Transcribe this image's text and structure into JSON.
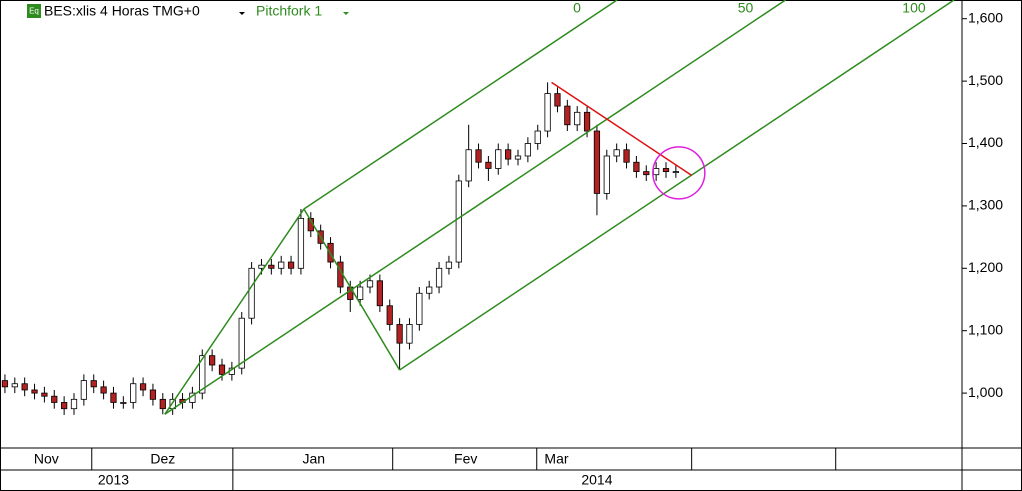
{
  "chart_data": {
    "type": "candlestick",
    "icon": "Eq",
    "title": "BES:xlis 4 Horas TMG+0",
    "study": "Pitchfork 1",
    "up_color": "#ffffff",
    "down_color": "#b22222",
    "xlim": [
      0,
      97.5
    ],
    "ylim": [
      912,
      1630
    ],
    "yticks": [
      {
        "value": 1000,
        "label": "1,000"
      },
      {
        "value": 1100,
        "label": "1,100"
      },
      {
        "value": 1200,
        "label": "1,200"
      },
      {
        "value": 1300,
        "label": "1,300"
      },
      {
        "value": 1400,
        "label": "1,400"
      },
      {
        "value": 1500,
        "label": "1,500"
      },
      {
        "value": 1600,
        "label": "1,600"
      }
    ],
    "months": [
      {
        "value": 4.7,
        "label": "Nov"
      },
      {
        "value": 16.5,
        "label": "Dez"
      },
      {
        "value": 31.8,
        "label": "Jan"
      },
      {
        "value": 47.2,
        "label": "Fev"
      },
      {
        "value": 56.4,
        "label": "Mar"
      }
    ],
    "month_dividers": [
      9.3,
      23.6,
      39.8,
      54.4,
      70.1,
      84.7
    ],
    "years": [
      {
        "value": 11.5,
        "label": "2013"
      },
      {
        "value": 60.5,
        "label": "2014"
      }
    ],
    "year_dividers": [
      23.6
    ],
    "open": [
      1020,
      1010,
      1015,
      1005,
      1000,
      995,
      985,
      975,
      990,
      1020,
      1010,
      1000,
      985,
      985,
      1015,
      1005,
      990,
      975,
      990,
      985,
      1000,
      1060,
      1045,
      1030,
      1040,
      1120,
      1200,
      1205,
      1200,
      1210,
      1200,
      1280,
      1260,
      1240,
      1210,
      1170,
      1150,
      1170,
      1180,
      1140,
      1110,
      1080,
      1110,
      1160,
      1170,
      1200,
      1210,
      1340,
      1390,
      1370,
      1360,
      1390,
      1375,
      1380,
      1400,
      1420,
      1480,
      1460,
      1430,
      1450,
      1420,
      1320,
      1380,
      1390,
      1370,
      1355,
      1350,
      1360,
      1355
    ],
    "high": [
      1030,
      1025,
      1025,
      1015,
      1010,
      1005,
      995,
      1000,
      1030,
      1030,
      1020,
      1010,
      995,
      1025,
      1025,
      1015,
      1000,
      1000,
      1000,
      1010,
      1070,
      1070,
      1055,
      1050,
      1130,
      1210,
      1215,
      1215,
      1220,
      1220,
      1295,
      1290,
      1270,
      1250,
      1220,
      1180,
      1180,
      1190,
      1190,
      1150,
      1120,
      1120,
      1170,
      1180,
      1210,
      1220,
      1350,
      1430,
      1400,
      1380,
      1400,
      1400,
      1390,
      1410,
      1430,
      1498,
      1490,
      1470,
      1460,
      1460,
      1430,
      1390,
      1400,
      1400,
      1380,
      1365,
      1370,
      1370,
      1365
    ],
    "low": [
      1000,
      1000,
      995,
      990,
      985,
      975,
      965,
      965,
      980,
      1000,
      990,
      975,
      975,
      975,
      995,
      980,
      966,
      965,
      975,
      975,
      990,
      1035,
      1020,
      1020,
      1030,
      1110,
      1190,
      1190,
      1190,
      1190,
      1190,
      1250,
      1230,
      1200,
      1160,
      1130,
      1140,
      1160,
      1130,
      1100,
      1037,
      1070,
      1100,
      1150,
      1160,
      1190,
      1200,
      1330,
      1360,
      1340,
      1350,
      1365,
      1365,
      1370,
      1390,
      1410,
      1450,
      1420,
      1420,
      1410,
      1285,
      1310,
      1370,
      1360,
      1345,
      1340,
      1340,
      1345,
      1345
    ],
    "close": [
      1010,
      1015,
      1005,
      1000,
      995,
      985,
      975,
      990,
      1020,
      1010,
      1000,
      985,
      985,
      1015,
      1005,
      990,
      975,
      990,
      985,
      1000,
      1060,
      1045,
      1030,
      1040,
      1120,
      1200,
      1205,
      1200,
      1210,
      1200,
      1280,
      1260,
      1240,
      1210,
      1170,
      1150,
      1170,
      1180,
      1140,
      1110,
      1080,
      1110,
      1160,
      1170,
      1200,
      1210,
      1340,
      1390,
      1370,
      1360,
      1390,
      1375,
      1380,
      1400,
      1420,
      1480,
      1460,
      1430,
      1450,
      1420,
      1320,
      1380,
      1390,
      1370,
      1355,
      1350,
      1360,
      1355,
      1355
    ],
    "pitchfork": {
      "color": "#2e8b1e",
      "points": [
        [
          16.7,
          966
        ],
        [
          30.8,
          1295
        ],
        [
          40.5,
          1037
        ]
      ],
      "levels": [
        0,
        50,
        100
      ]
    },
    "trendline": {
      "color": "#e01010",
      "points": [
        [
          55.9,
          1498
        ],
        [
          70.1,
          1349
        ]
      ]
    },
    "circle": {
      "color": "#e020e0",
      "center": [
        68.8,
        1353
      ]
    }
  }
}
